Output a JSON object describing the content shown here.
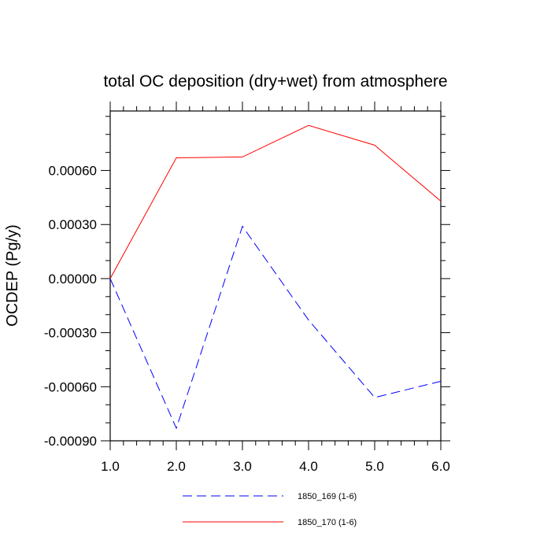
{
  "chart_data": {
    "type": "line",
    "title": "total OC deposition (dry+wet) from atmosphere",
    "xlabel": "",
    "ylabel": "OCDEP  (Pg/y)",
    "xlim": [
      1.0,
      6.0
    ],
    "ylim": [
      -0.0009,
      0.00093
    ],
    "x_ticks": [
      1.0,
      2.0,
      3.0,
      4.0,
      5.0,
      6.0
    ],
    "x_tick_labels": [
      "1.0",
      "2.0",
      "3.0",
      "4.0",
      "5.0",
      "6.0"
    ],
    "y_ticks": [
      -0.0009,
      -0.0006,
      -0.0003,
      0.0,
      0.0003,
      0.0006
    ],
    "y_tick_labels": [
      "-0.00090",
      "-0.00060",
      "-0.00030",
      "0.00000",
      "0.00030",
      "0.00060"
    ],
    "x": [
      1.0,
      2.0,
      3.0,
      4.0,
      5.0,
      6.0
    ],
    "series": [
      {
        "name": "1850_169 (1-6)",
        "values": [
          0.0,
          -0.00083,
          0.00029,
          -0.00023,
          -0.00066,
          -0.00057
        ],
        "color": "#0000ff",
        "dash": "dashed"
      },
      {
        "name": "1850_170 (1-6)",
        "values": [
          0.0,
          0.00067,
          0.000675,
          0.00085,
          0.00074,
          0.00043
        ],
        "color": "#ff0000",
        "dash": "solid"
      }
    ],
    "grid": false,
    "legend_position": "bottom"
  }
}
